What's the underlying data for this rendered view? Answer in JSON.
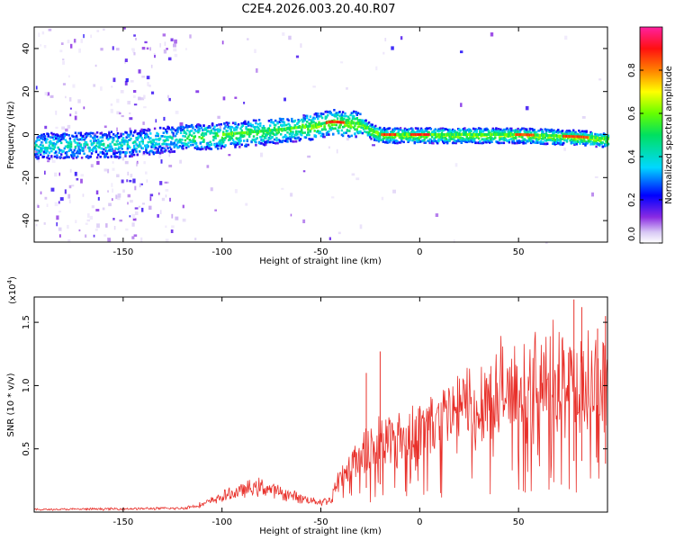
{
  "title": "C2E4.2026.003.20.40.R07",
  "chart_data": [
    {
      "type": "heatmap",
      "name": "spectrogram",
      "xlabel": "Height of straight line (km)",
      "ylabel": "Frequency (Hz)",
      "xlim": [
        -195,
        95
      ],
      "ylim": [
        -50,
        50
      ],
      "x_ticks": [
        "-150",
        "-100",
        "-50",
        "0",
        "50"
      ],
      "y_ticks": [
        "40",
        "20",
        "0",
        "-20",
        "-40"
      ],
      "x_tick_values": [
        -150,
        -100,
        -50,
        0,
        50
      ],
      "y_tick_values": [
        40,
        20,
        0,
        -20,
        -40
      ],
      "colorbar": {
        "label": "Normalized spectral amplitude",
        "range": [
          0,
          1
        ],
        "ticks": [
          "0.0",
          "0.2",
          "0.4",
          "0.6",
          "0.8"
        ],
        "tick_values": [
          0.0,
          0.2,
          0.4,
          0.6,
          0.8
        ]
      },
      "centerline": {
        "x": [
          -195,
          -150,
          -120,
          -100,
          -75,
          -55,
          -45,
          -30,
          -25,
          -20,
          -10,
          0,
          25,
          50,
          80,
          95
        ],
        "freq": [
          -5,
          -4,
          -1,
          0,
          2,
          4,
          6,
          5,
          2,
          0,
          0,
          0,
          0,
          0,
          -1,
          -2
        ]
      }
    },
    {
      "type": "line",
      "name": "snr",
      "xlabel": "Height of straight line (km)",
      "ylabel": "SNR (10 * v/v)",
      "scale_label": "(x10",
      "scale_exponent": "4",
      "xlim": [
        -195,
        95
      ],
      "ylim": [
        0,
        1.7
      ],
      "x_ticks": [
        "-150",
        "-100",
        "-50",
        "0",
        "50"
      ],
      "y_ticks": [
        "0.5",
        "1.0",
        "1.5"
      ],
      "x_tick_values": [
        -150,
        -100,
        -50,
        0,
        50
      ],
      "y_tick_values": [
        0.5,
        1.0,
        1.5
      ],
      "envelope": {
        "x": [
          -195,
          -120,
          -110,
          -100,
          -90,
          -80,
          -70,
          -60,
          -50,
          -45,
          -42,
          -40,
          -35,
          -30,
          -25,
          -20,
          -15,
          -10,
          -5,
          0,
          10,
          20,
          30,
          40,
          50,
          60,
          70,
          75,
          80,
          85,
          90,
          95
        ],
        "y": [
          0.02,
          0.03,
          0.06,
          0.12,
          0.17,
          0.2,
          0.15,
          0.11,
          0.08,
          0.1,
          0.2,
          0.3,
          0.38,
          0.45,
          0.5,
          0.55,
          0.58,
          0.6,
          0.62,
          0.65,
          0.72,
          0.8,
          0.88,
          0.93,
          0.95,
          0.97,
          1.0,
          1.0,
          1.02,
          1.0,
          0.98,
          0.95
        ]
      },
      "spikes": [
        {
          "x": -20,
          "y": 1.27
        },
        {
          "x": -27,
          "y": 1.1
        },
        {
          "x": 78,
          "y": 1.68
        },
        {
          "x": 82,
          "y": 1.62
        },
        {
          "x": 90,
          "y": 1.45
        },
        {
          "x": 94,
          "y": 1.55
        }
      ],
      "color": "#e8302a"
    }
  ]
}
